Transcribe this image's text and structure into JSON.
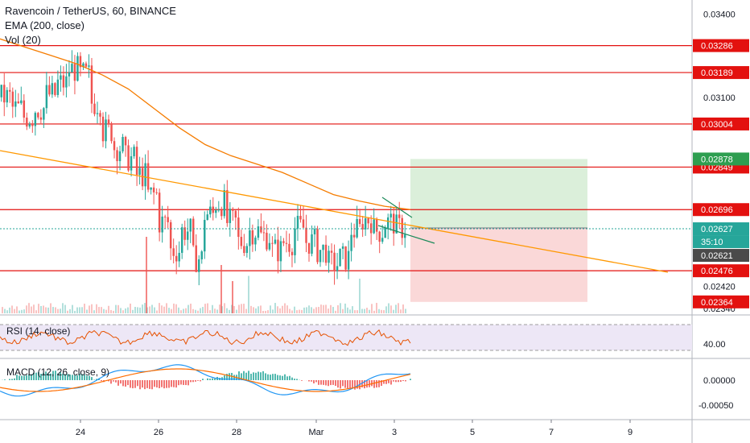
{
  "header": {
    "title": "Ravencoin / TetherUS, 60, BINANCE",
    "indicator1": "EMA (200, close)",
    "indicator2": "Vol (20)"
  },
  "rsi_pane": {
    "label": "RSI (14, close)",
    "level": "40.00"
  },
  "macd_pane": {
    "label": "MACD (12, 26, close, 9)",
    "tick_zero": "0.00000",
    "tick_neg": "-0.00050"
  },
  "colors": {
    "up": "#26a69a",
    "down": "#ef5350",
    "hline": "#e3110f",
    "ema": "#f57c00",
    "trend": "#ff9800",
    "rsi_band": "#ede7f6",
    "rsi_line": "#e65100",
    "target_zone": "#d5ecd4",
    "stop_zone": "#f9d4d4",
    "macd_line": "#2196f3",
    "signal_line": "#ff6d00"
  },
  "chart_data": {
    "type": "candlestick",
    "title": "Ravencoin / TetherUS, 60, BINANCE",
    "x_tick_labels": [
      "24",
      "26",
      "28",
      "Mar",
      "3",
      "5",
      "7",
      "9"
    ],
    "y_tick_labels": [
      "0.03400",
      "0.03100",
      "0.02420",
      "0.02340"
    ],
    "ylim": [
      0.0232,
      0.0345
    ],
    "horizontal_levels": [
      "0.03286",
      "0.03189",
      "0.03004",
      "0.02849",
      "0.02696",
      "0.02476"
    ],
    "price_tags": {
      "last_price": "0.02627",
      "countdown": "35:10",
      "secondary_price": "0.02621",
      "target": "0.02878",
      "stop": "0.02364"
    },
    "position": {
      "entry": 0.0263,
      "target": 0.02878,
      "stop": 0.02364
    },
    "ema_200": [
      0.0331,
      0.0328,
      0.0325,
      0.0322,
      0.0318,
      0.0313,
      0.0306,
      0.0299,
      0.0293,
      0.0289,
      0.0286,
      0.0283,
      0.0279,
      0.0275,
      0.02727,
      0.02708,
      0.02696
    ],
    "candles_close_approx": [
      0.031,
      0.0306,
      0.0303,
      0.0306,
      0.0311,
      0.0315,
      0.032,
      0.0318,
      0.0308,
      0.0298,
      0.0292,
      0.0288,
      0.0282,
      0.0275,
      0.0265,
      0.0255,
      0.0262,
      0.0252,
      0.0268,
      0.0272,
      0.0265,
      0.0258,
      0.0262,
      0.026,
      0.0255,
      0.0258,
      0.0263,
      0.0258,
      0.0255,
      0.025,
      0.0252,
      0.0262,
      0.0266,
      0.0262,
      0.0265,
      0.0263
    ],
    "rsi": {
      "level_lines": [
        70,
        30
      ],
      "ylim": [
        20,
        80
      ]
    },
    "macd": {
      "ylim": [
        -0.0007,
        0.0003
      ]
    }
  }
}
